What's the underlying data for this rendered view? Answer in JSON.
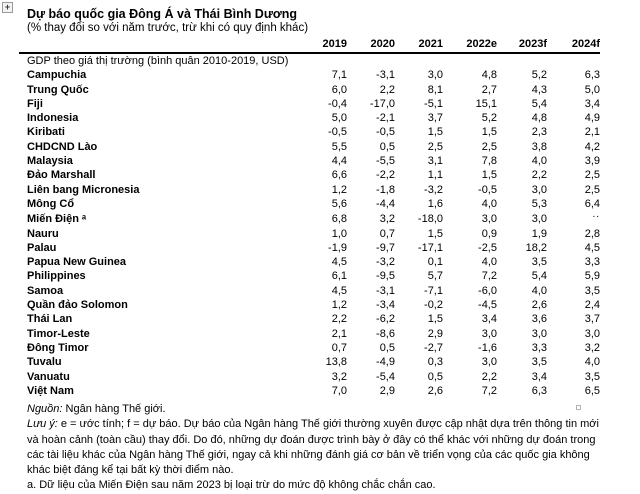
{
  "window": {
    "table_handle_glyph": "+"
  },
  "header": {
    "title": "Dự báo quốc gia Đông Á và Thái Bình Dương",
    "subtitle": "(% thay đổi so với năm trước, trừ khi có quy định khác)"
  },
  "chart_data": {
    "type": "table",
    "columns": [
      "2019",
      "2020",
      "2021",
      "2022e",
      "2023f",
      "2024f"
    ],
    "section_label": "GDP theo giá thị trường (bình quân 2010-2019, USD)",
    "no_data_marker": "..",
    "rows": [
      {
        "name": "Campuchia",
        "values": [
          "7,1",
          "-3,1",
          "3,0",
          "4,8",
          "5,2",
          "6,3"
        ]
      },
      {
        "name": "Trung Quốc",
        "values": [
          "6,0",
          "2,2",
          "8,1",
          "2,7",
          "4,3",
          "5,0"
        ]
      },
      {
        "name": "Fiji",
        "values": [
          "-0,4",
          "-17,0",
          "-5,1",
          "15,1",
          "5,4",
          "3,4"
        ]
      },
      {
        "name": "Indonesia",
        "values": [
          "5,0",
          "-2,1",
          "3,7",
          "5,2",
          "4,8",
          "4,9"
        ]
      },
      {
        "name": "Kiribati",
        "values": [
          "-0,5",
          "-0,5",
          "1,5",
          "1,5",
          "2,3",
          "2,1"
        ]
      },
      {
        "name": "CHDCND Lào",
        "values": [
          "5,5",
          "0,5",
          "2,5",
          "2,5",
          "3,8",
          "4,2"
        ]
      },
      {
        "name": "Malaysia",
        "values": [
          "4,4",
          "-5,5",
          "3,1",
          "7,8",
          "4,0",
          "3,9"
        ]
      },
      {
        "name": "Đảo Marshall",
        "values": [
          "6,6",
          "-2,2",
          "1,1",
          "1,5",
          "2,2",
          "2,5"
        ]
      },
      {
        "name": "Liên bang Micronesia",
        "values": [
          "1,2",
          "-1,8",
          "-3,2",
          "-0,5",
          "3,0",
          "2,5"
        ]
      },
      {
        "name": "Mông Cổ",
        "values": [
          "5,6",
          "-4,4",
          "1,6",
          "4,0",
          "5,3",
          "6,4"
        ]
      },
      {
        "name": "Miến Điện ᵃ",
        "values": [
          "6,8",
          "3,2",
          "-18,0",
          "3,0",
          "3,0",
          ".."
        ]
      },
      {
        "name": "Nauru",
        "values": [
          "1,0",
          "0,7",
          "1,5",
          "0,9",
          "1,9",
          "2,8"
        ]
      },
      {
        "name": "Palau",
        "values": [
          "-1,9",
          "-9,7",
          "-17,1",
          "-2,5",
          "18,2",
          "4,5"
        ]
      },
      {
        "name": "Papua New Guinea",
        "values": [
          "4,5",
          "-3,2",
          "0,1",
          "4,0",
          "3,5",
          "3,3"
        ]
      },
      {
        "name": "Philippines",
        "values": [
          "6,1",
          "-9,5",
          "5,7",
          "7,2",
          "5,4",
          "5,9"
        ]
      },
      {
        "name": "Samoa",
        "values": [
          "4,5",
          "-3,1",
          "-7,1",
          "-6,0",
          "4,0",
          "3,5"
        ]
      },
      {
        "name": "Quần đảo Solomon",
        "values": [
          "1,2",
          "-3,4",
          "-0,2",
          "-4,5",
          "2,6",
          "2,4"
        ]
      },
      {
        "name": "Thái Lan",
        "values": [
          "2,2",
          "-6,2",
          "1,5",
          "3,4",
          "3,6",
          "3,7"
        ]
      },
      {
        "name": "Timor-Leste",
        "values": [
          "2,1",
          "-8,6",
          "2,9",
          "3,0",
          "3,0",
          "3,0"
        ]
      },
      {
        "name": "Đông Timor",
        "values": [
          "0,7",
          "0,5",
          "-2,7",
          "-1,6",
          "3,3",
          "3,2"
        ]
      },
      {
        "name": "Tuvalu",
        "values": [
          "13,8",
          "-4,9",
          "0,3",
          "3,0",
          "3,5",
          "4,0"
        ]
      },
      {
        "name": "Vanuatu",
        "values": [
          "3,2",
          "-5,4",
          "0,5",
          "2,2",
          "3,4",
          "3,5"
        ]
      },
      {
        "name": "Việt Nam",
        "values": [
          "7,0",
          "2,9",
          "2,6",
          "7,2",
          "6,3",
          "6,5"
        ]
      }
    ]
  },
  "notes": {
    "source_label": "Nguồn:",
    "source_text": " Ngân hàng Thế giới.",
    "note_label": "Lưu ý:",
    "note_text": " e = ước tính; f = dự báo. Dự báo của Ngân hàng Thế giới thường xuyên được cập nhật dựa trên thông tin mới và hoàn cảnh (toàn cầu) thay đổi. Do đó, những dự đoán được trình bày ở đây có thể khác với những dự đoán trong các tài liệu khác của Ngân hàng Thế giới, ngay cả khi những đánh giá cơ bản về triển vọng của các quốc gia không khác biệt đáng kể tại bất kỳ thời điểm nào.",
    "footnote_a": "a. Dữ liệu của Miến Điện sau năm 2023 bị loại trừ do mức độ không chắc chắn cao."
  }
}
